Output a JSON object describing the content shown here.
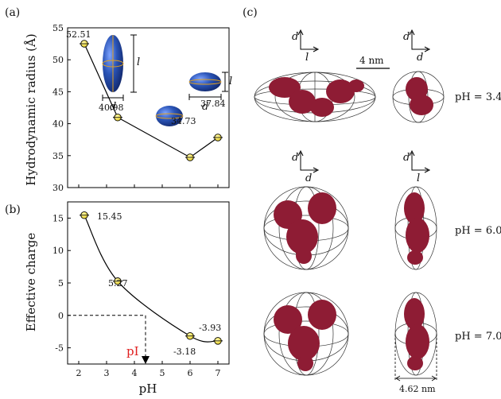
{
  "chart_data": [
    {
      "type": "line",
      "panel_label": "(a)",
      "ylabel": "Hydrodynamic radius (Å)",
      "ylim": [
        30,
        55
      ],
      "yticks": [
        30,
        35,
        40,
        45,
        50,
        55
      ],
      "xlim": [
        1.6,
        7.4
      ],
      "xticks": [
        2,
        3,
        4,
        5,
        6,
        7
      ],
      "x": [
        2.2,
        3.4,
        6.0,
        7.0
      ],
      "y": [
        52.51,
        40.98,
        34.73,
        37.84
      ],
      "point_labels": [
        "52.51",
        "40.98",
        "34.73",
        "37.84"
      ],
      "shape_labels": {
        "long_axis": "l",
        "short_axis": "d"
      }
    },
    {
      "type": "line",
      "panel_label": "(b)",
      "xlabel": "pH",
      "ylabel": "Effective charge",
      "ylim": [
        -7.5,
        17.5
      ],
      "yticks": [
        -5,
        0,
        5,
        10,
        15
      ],
      "xlim": [
        1.6,
        7.4
      ],
      "xticks": [
        2,
        3,
        4,
        5,
        6,
        7
      ],
      "x": [
        2.2,
        3.4,
        6.0,
        7.0
      ],
      "y": [
        15.45,
        5.27,
        -3.18,
        -3.93
      ],
      "point_labels": [
        "15.45",
        "5.27",
        "-3.18",
        "-3.93"
      ],
      "pI_label": "pI",
      "pI_value": 4.4,
      "pI_color": "#e02020"
    }
  ],
  "panel_c": {
    "label": "(c)",
    "scale_bar": "4 nm",
    "rows": [
      {
        "ph_label": "pH = 3.4",
        "axes_left": [
          "d",
          "l"
        ],
        "axes_right": [
          "d",
          "d"
        ]
      },
      {
        "ph_label": "pH = 6.0",
        "axes_left": [
          "d",
          "d"
        ],
        "axes_right": [
          "d",
          "l"
        ]
      },
      {
        "ph_label": "pH = 7.0"
      }
    ],
    "width_label": "4.62 nm",
    "protein_color": "#8e1c34",
    "ellipsoid_color": "#2b55b8"
  }
}
